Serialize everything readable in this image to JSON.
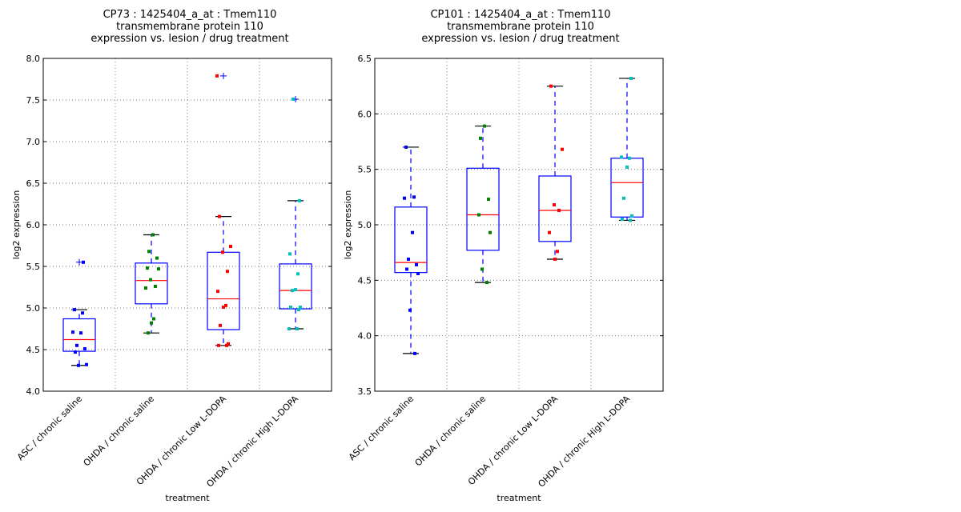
{
  "chart_data": [
    {
      "type": "box",
      "title_lines": [
        "CP73 : 1425404_a_at : Tmem110",
        "transmembrane protein 110",
        "expression vs. lesion / drug treatment"
      ],
      "xlabel": "treatment",
      "ylabel": "log2 expression",
      "ylim": [
        4.0,
        8.0
      ],
      "yticks": [
        "4.0",
        "4.5",
        "5.0",
        "5.5",
        "6.0",
        "6.5",
        "7.0",
        "7.5",
        "8.0"
      ],
      "grid": true,
      "categories": [
        "ASC / chronic saline",
        "OHDA / chronic saline",
        "OHDA / chronic Low L-DOPA",
        "OHDA / chronic High L-DOPA"
      ],
      "point_colors": [
        "#0000ff",
        "#008000",
        "#ff0000",
        "#00bfbf"
      ],
      "boxes": [
        {
          "whisker_low": 4.31,
          "q1": 4.48,
          "median": 4.62,
          "q3": 4.87,
          "whisker_high": 4.98,
          "outliers": [
            5.55
          ],
          "points": [
            4.98,
            4.94,
            4.71,
            4.7,
            4.55,
            4.51,
            4.47,
            4.32,
            4.31,
            5.55
          ]
        },
        {
          "whisker_low": 4.7,
          "q1": 5.05,
          "median": 5.33,
          "q3": 5.54,
          "whisker_high": 5.88,
          "outliers": [],
          "points": [
            5.88,
            5.68,
            5.6,
            5.48,
            5.47,
            5.34,
            5.26,
            5.24,
            4.87,
            4.82,
            4.7
          ]
        },
        {
          "whisker_low": 4.55,
          "q1": 4.74,
          "median": 5.11,
          "q3": 5.67,
          "whisker_high": 6.1,
          "outliers": [
            7.79
          ],
          "points": [
            6.1,
            5.74,
            5.67,
            5.44,
            5.2,
            5.03,
            5.01,
            4.79,
            4.57,
            4.55,
            4.55,
            7.79
          ]
        },
        {
          "whisker_low": 4.75,
          "q1": 4.99,
          "median": 5.21,
          "q3": 5.53,
          "whisker_high": 6.29,
          "outliers": [
            7.51
          ],
          "points": [
            6.29,
            5.65,
            5.41,
            5.22,
            5.21,
            5.01,
            5.01,
            4.98,
            4.75,
            4.75,
            7.51
          ]
        }
      ]
    },
    {
      "type": "box",
      "title_lines": [
        "CP101 : 1425404_a_at : Tmem110",
        "transmembrane protein 110",
        "expression vs. lesion / drug treatment"
      ],
      "xlabel": "treatment",
      "ylabel": "log2 expression",
      "ylim": [
        3.5,
        6.5
      ],
      "yticks": [
        "3.5",
        "4.0",
        "4.5",
        "5.0",
        "5.5",
        "6.0",
        "6.5"
      ],
      "grid": true,
      "categories": [
        "ASC / chronic saline",
        "OHDA / chronic saline",
        "OHDA / chronic Low L-DOPA",
        "OHDA / chronic High L-DOPA"
      ],
      "point_colors": [
        "#0000ff",
        "#008000",
        "#ff0000",
        "#00bfbf"
      ],
      "boxes": [
        {
          "whisker_low": 3.84,
          "q1": 4.57,
          "median": 4.66,
          "q3": 5.16,
          "whisker_high": 5.7,
          "outliers": [],
          "points": [
            5.7,
            5.25,
            5.24,
            4.93,
            4.69,
            4.64,
            4.6,
            4.56,
            4.23,
            3.84
          ]
        },
        {
          "whisker_low": 4.48,
          "q1": 4.77,
          "median": 5.09,
          "q3": 5.51,
          "whisker_high": 5.89,
          "outliers": [],
          "points": [
            5.89,
            5.78,
            5.23,
            5.09,
            4.93,
            4.6,
            4.48
          ]
        },
        {
          "whisker_low": 4.69,
          "q1": 4.85,
          "median": 5.13,
          "q3": 5.44,
          "whisker_high": 6.25,
          "outliers": [],
          "points": [
            6.25,
            5.68,
            5.18,
            5.13,
            4.93,
            4.76,
            4.69
          ]
        },
        {
          "whisker_low": 5.04,
          "q1": 5.07,
          "median": 5.38,
          "q3": 5.6,
          "whisker_high": 6.32,
          "outliers": [],
          "points": [
            6.32,
            5.61,
            5.6,
            5.52,
            5.24,
            5.08,
            5.05,
            5.04
          ]
        }
      ]
    }
  ],
  "colors": {
    "box": "#0000ff",
    "median": "#ff0000",
    "cap": "#000000",
    "grid": "#808080",
    "outlier_marker": "#0000ff"
  }
}
